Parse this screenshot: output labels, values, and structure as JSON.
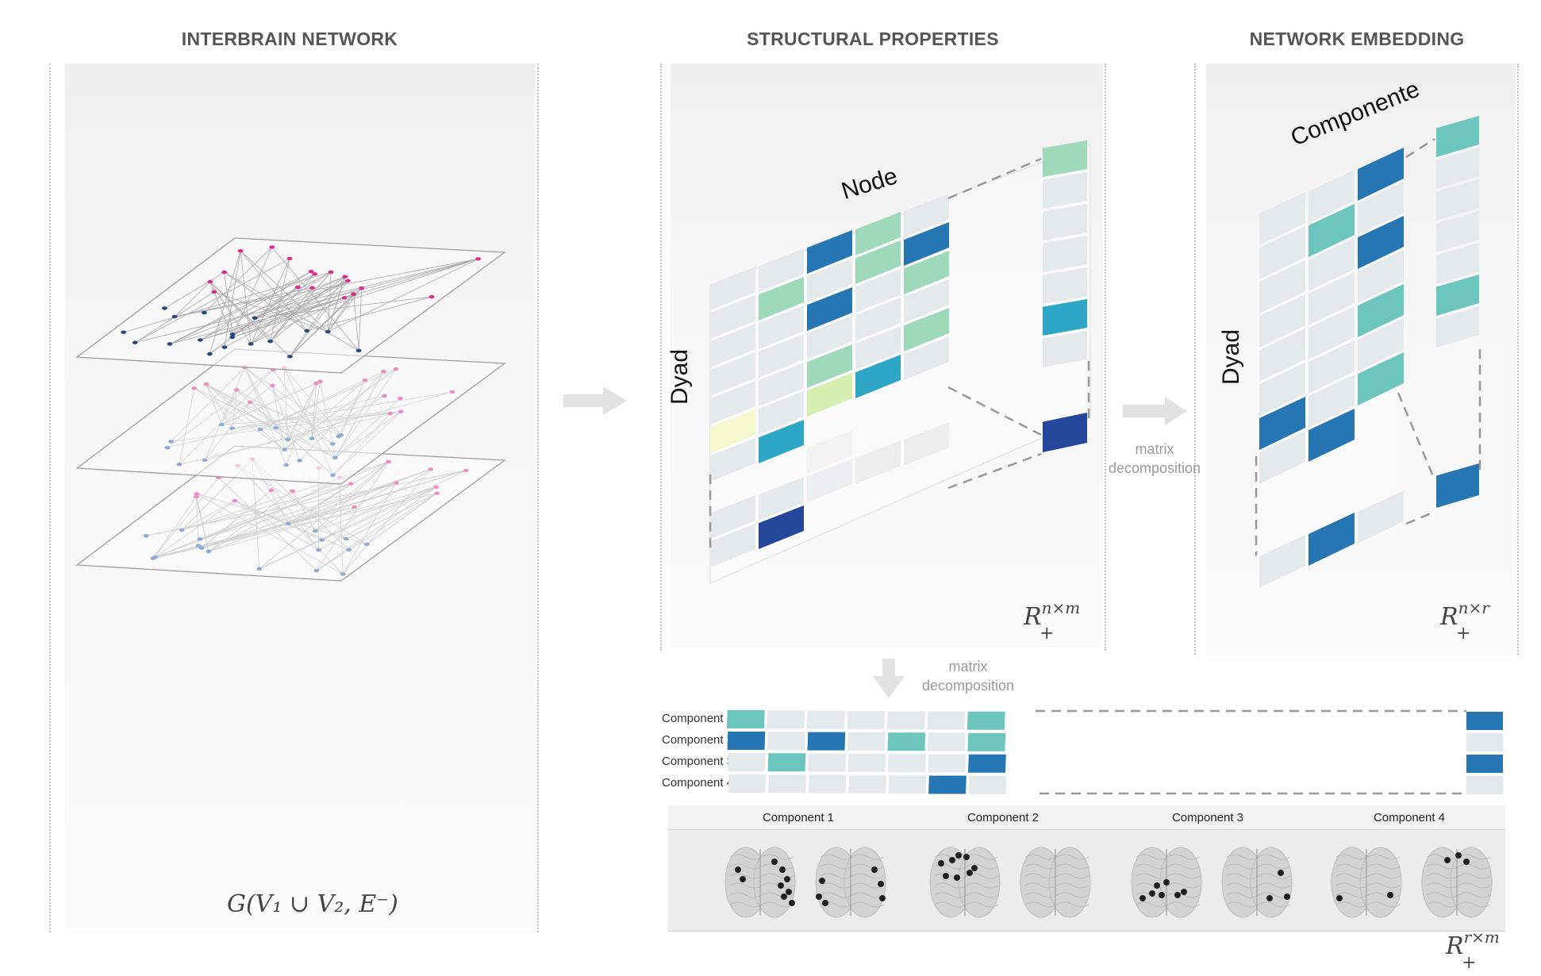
{
  "titles": {
    "interbrain": "INTERBRAIN NETWORK",
    "structural": "STRUCTURAL PROPERTIES",
    "embedding": "NETWORK EMBEDDING"
  },
  "formulas": {
    "graph": "G(V₁ ∪ V₂, E⁻)",
    "rnm_base": "R",
    "rnm_sup": "n×m",
    "rnm_sub": "+",
    "rnr_base": "R",
    "rnr_sup": "n×r",
    "rnr_sub": "+",
    "rrm_base": "R",
    "rrm_sup": "r×m",
    "rrm_sub": "+"
  },
  "matrix_labels": {
    "node": "Node",
    "dyad_left": "Dyad",
    "dyad_right": "Dyad",
    "componente": "Componente"
  },
  "arrows": {
    "decomp_right_1": "matrix",
    "decomp_right_2": "decomposition",
    "decomp_down_1": "matrix",
    "decomp_down_2": "decomposition"
  },
  "component_rows": [
    "Component 1",
    "Component 2",
    "Component 3",
    "Component 4"
  ],
  "brain_titles": [
    "Component 1",
    "Component 2",
    "Component 3",
    "Component 4"
  ],
  "colors": {
    "dark_blue": "#24479c",
    "mid_blue": "#2676b4",
    "teal_blue": "#2ea7c6",
    "teal": "#6cc6bd",
    "mint": "#9fd9bb",
    "light_green": "#d6eeb0",
    "pale_yellow": "#f4f9cd",
    "empty_cell": "#e4e9ec",
    "magenta": "#e02a8a",
    "pink": "#f08cc0",
    "navy_node": "#24497e",
    "light_blue_node": "#8eaad6"
  }
}
